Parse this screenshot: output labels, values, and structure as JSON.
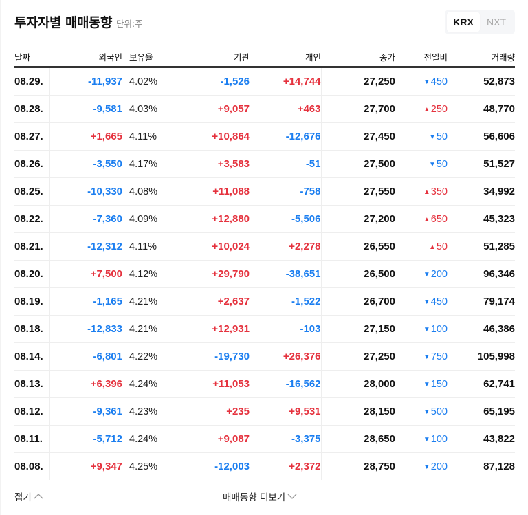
{
  "header": {
    "title": "투자자별 매매동향",
    "unit": "단위:주"
  },
  "market_toggle": {
    "options": [
      {
        "label": "KRX",
        "selected": true
      },
      {
        "label": "NXT",
        "selected": false
      }
    ]
  },
  "colors": {
    "up": "#e5323e",
    "down": "#1b7ef0",
    "text": "#111111"
  },
  "table": {
    "columns": [
      "날짜",
      "외국인",
      "보유율",
      "기관",
      "개인",
      "종가",
      "전일비",
      "거래량"
    ],
    "rows": [
      {
        "date": "08.29.",
        "foreign": "-11,937",
        "foreign_dir": "down",
        "ratio": "4.02%",
        "inst": "-1,526",
        "inst_dir": "down",
        "indiv": "+14,744",
        "indiv_dir": "up",
        "close": "27,250",
        "change": "450",
        "change_dir": "down",
        "change_icon": "▼",
        "volume": "52,873"
      },
      {
        "date": "08.28.",
        "foreign": "-9,581",
        "foreign_dir": "down",
        "ratio": "4.03%",
        "inst": "+9,057",
        "inst_dir": "up",
        "indiv": "+463",
        "indiv_dir": "up",
        "close": "27,700",
        "change": "250",
        "change_dir": "up",
        "change_icon": "▲",
        "volume": "48,770"
      },
      {
        "date": "08.27.",
        "foreign": "+1,665",
        "foreign_dir": "up",
        "ratio": "4.11%",
        "inst": "+10,864",
        "inst_dir": "up",
        "indiv": "-12,676",
        "indiv_dir": "down",
        "close": "27,450",
        "change": "50",
        "change_dir": "down",
        "change_icon": "▼",
        "volume": "56,606"
      },
      {
        "date": "08.26.",
        "foreign": "-3,550",
        "foreign_dir": "down",
        "ratio": "4.17%",
        "inst": "+3,583",
        "inst_dir": "up",
        "indiv": "-51",
        "indiv_dir": "down",
        "close": "27,500",
        "change": "50",
        "change_dir": "down",
        "change_icon": "▼",
        "volume": "51,527"
      },
      {
        "date": "08.25.",
        "foreign": "-10,330",
        "foreign_dir": "down",
        "ratio": "4.08%",
        "inst": "+11,088",
        "inst_dir": "up",
        "indiv": "-758",
        "indiv_dir": "down",
        "close": "27,550",
        "change": "350",
        "change_dir": "up",
        "change_icon": "▲",
        "volume": "34,992"
      },
      {
        "date": "08.22.",
        "foreign": "-7,360",
        "foreign_dir": "down",
        "ratio": "4.09%",
        "inst": "+12,880",
        "inst_dir": "up",
        "indiv": "-5,506",
        "indiv_dir": "down",
        "close": "27,200",
        "change": "650",
        "change_dir": "up",
        "change_icon": "▲",
        "volume": "45,323"
      },
      {
        "date": "08.21.",
        "foreign": "-12,312",
        "foreign_dir": "down",
        "ratio": "4.11%",
        "inst": "+10,024",
        "inst_dir": "up",
        "indiv": "+2,278",
        "indiv_dir": "up",
        "close": "26,550",
        "change": "50",
        "change_dir": "up",
        "change_icon": "▲",
        "volume": "51,285"
      },
      {
        "date": "08.20.",
        "foreign": "+7,500",
        "foreign_dir": "up",
        "ratio": "4.12%",
        "inst": "+29,790",
        "inst_dir": "up",
        "indiv": "-38,651",
        "indiv_dir": "down",
        "close": "26,500",
        "change": "200",
        "change_dir": "down",
        "change_icon": "▼",
        "volume": "96,346"
      },
      {
        "date": "08.19.",
        "foreign": "-1,165",
        "foreign_dir": "down",
        "ratio": "4.21%",
        "inst": "+2,637",
        "inst_dir": "up",
        "indiv": "-1,522",
        "indiv_dir": "down",
        "close": "26,700",
        "change": "450",
        "change_dir": "down",
        "change_icon": "▼",
        "volume": "79,174"
      },
      {
        "date": "08.18.",
        "foreign": "-12,833",
        "foreign_dir": "down",
        "ratio": "4.21%",
        "inst": "+12,931",
        "inst_dir": "up",
        "indiv": "-103",
        "indiv_dir": "down",
        "close": "27,150",
        "change": "100",
        "change_dir": "down",
        "change_icon": "▼",
        "volume": "46,386"
      },
      {
        "date": "08.14.",
        "foreign": "-6,801",
        "foreign_dir": "down",
        "ratio": "4.22%",
        "inst": "-19,730",
        "inst_dir": "down",
        "indiv": "+26,376",
        "indiv_dir": "up",
        "close": "27,250",
        "change": "750",
        "change_dir": "down",
        "change_icon": "▼",
        "volume": "105,998"
      },
      {
        "date": "08.13.",
        "foreign": "+6,396",
        "foreign_dir": "up",
        "ratio": "4.24%",
        "inst": "+11,053",
        "inst_dir": "up",
        "indiv": "-16,562",
        "indiv_dir": "down",
        "close": "28,000",
        "change": "150",
        "change_dir": "down",
        "change_icon": "▼",
        "volume": "62,741"
      },
      {
        "date": "08.12.",
        "foreign": "-9,361",
        "foreign_dir": "down",
        "ratio": "4.23%",
        "inst": "+235",
        "inst_dir": "up",
        "indiv": "+9,531",
        "indiv_dir": "up",
        "close": "28,150",
        "change": "500",
        "change_dir": "down",
        "change_icon": "▼",
        "volume": "65,195"
      },
      {
        "date": "08.11.",
        "foreign": "-5,712",
        "foreign_dir": "down",
        "ratio": "4.24%",
        "inst": "+9,087",
        "inst_dir": "up",
        "indiv": "-3,375",
        "indiv_dir": "down",
        "close": "28,650",
        "change": "100",
        "change_dir": "down",
        "change_icon": "▼",
        "volume": "43,822"
      },
      {
        "date": "08.08.",
        "foreign": "+9,347",
        "foreign_dir": "up",
        "ratio": "4.25%",
        "inst": "-12,003",
        "inst_dir": "down",
        "indiv": "+2,372",
        "indiv_dir": "up",
        "close": "28,750",
        "change": "200",
        "change_dir": "down",
        "change_icon": "▼",
        "volume": "87,128"
      }
    ]
  },
  "footer": {
    "fold_label": "접기",
    "more_label": "매매동향 더보기"
  }
}
